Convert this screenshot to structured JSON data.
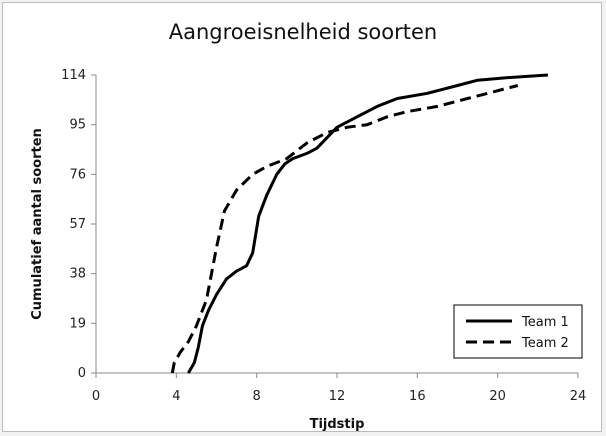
{
  "chart_data": {
    "type": "line",
    "title": "Aangroeisnelheid soorten",
    "xlabel": "Tijdstip",
    "ylabel": "Cumulatief aantal soorten",
    "xlim": [
      0,
      24
    ],
    "ylim": [
      0,
      114
    ],
    "x_ticks": [
      "0",
      "4",
      "8",
      "12",
      "16",
      "20",
      "24"
    ],
    "y_ticks": [
      "0",
      "19",
      "38",
      "57",
      "76",
      "95",
      "114"
    ],
    "grid": false,
    "legend_position": "bottom-right",
    "series": [
      {
        "name": "Team 1",
        "style": "solid",
        "color": "#000000",
        "points": [
          [
            4.6,
            0
          ],
          [
            4.9,
            4
          ],
          [
            5.1,
            10
          ],
          [
            5.3,
            18
          ],
          [
            5.6,
            24
          ],
          [
            6.0,
            30
          ],
          [
            6.5,
            36
          ],
          [
            7.0,
            39
          ],
          [
            7.5,
            41
          ],
          [
            7.8,
            46
          ],
          [
            8.1,
            60
          ],
          [
            8.5,
            68
          ],
          [
            9.0,
            76
          ],
          [
            9.4,
            80
          ],
          [
            9.8,
            82
          ],
          [
            10.5,
            84
          ],
          [
            11.0,
            86
          ],
          [
            11.5,
            90
          ],
          [
            12.0,
            94
          ],
          [
            13.0,
            98
          ],
          [
            14.0,
            102
          ],
          [
            15.0,
            105
          ],
          [
            16.5,
            107
          ],
          [
            18.0,
            110
          ],
          [
            19.0,
            112
          ],
          [
            20.5,
            113
          ],
          [
            22.5,
            114
          ]
        ]
      },
      {
        "name": "Team 2",
        "style": "dashed",
        "color": "#000000",
        "points": [
          [
            3.8,
            0
          ],
          [
            3.9,
            4
          ],
          [
            4.2,
            8
          ],
          [
            4.6,
            12
          ],
          [
            5.0,
            18
          ],
          [
            5.5,
            28
          ],
          [
            6.0,
            48
          ],
          [
            6.4,
            62
          ],
          [
            7.0,
            70
          ],
          [
            7.8,
            76
          ],
          [
            8.5,
            79
          ],
          [
            9.5,
            82
          ],
          [
            10.5,
            88
          ],
          [
            11.5,
            92
          ],
          [
            12.5,
            94
          ],
          [
            13.5,
            95
          ],
          [
            14.5,
            98
          ],
          [
            15.5,
            100
          ],
          [
            17.0,
            102
          ],
          [
            18.5,
            105
          ],
          [
            19.5,
            107
          ],
          [
            21.0,
            110
          ]
        ]
      }
    ]
  }
}
